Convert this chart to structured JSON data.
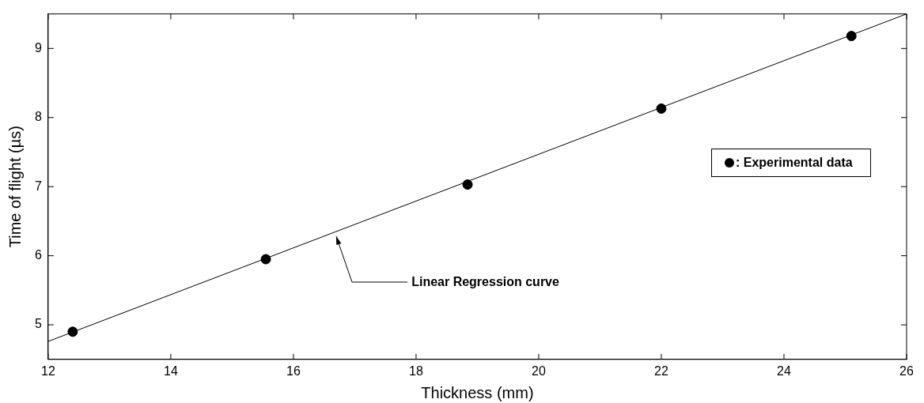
{
  "chart_data": {
    "type": "scatter",
    "xlabel": "Thickness (mm)",
    "ylabel": "Time of flight (µs)",
    "x": [
      12.4,
      15.55,
      18.84,
      22.0,
      25.1
    ],
    "series": [
      {
        "name": ": Experimental data",
        "color": "#000000",
        "marker": "circle",
        "values": [
          4.9,
          5.95,
          7.03,
          8.13,
          9.18
        ]
      },
      {
        "type": "line",
        "color": "#000000",
        "marker": "none",
        "line_style": "solid",
        "x": [
          12,
          26
        ],
        "values": [
          4.76,
          9.5
        ]
      }
    ],
    "xlim": [
      12,
      26
    ],
    "xticks": [
      12,
      14,
      16,
      18,
      20,
      22,
      24,
      26
    ],
    "ylim": [
      4.5,
      9.5
    ],
    "yticks": [
      5,
      6,
      7,
      8,
      9
    ],
    "grid": false,
    "legend": "right",
    "annotations": [
      {
        "text": "Linear Regression curve",
        "x": 16.7,
        "y": 6.3
      }
    ]
  }
}
